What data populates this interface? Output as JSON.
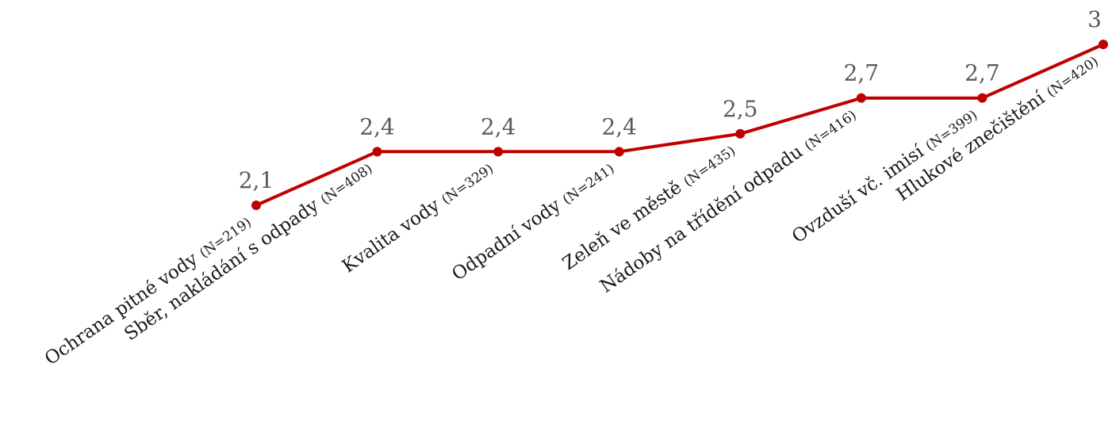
{
  "chart_data": {
    "type": "line",
    "title": "",
    "xlabel": "",
    "ylabel": "",
    "categories": [
      "Ochrana pitné vody",
      "Sběr, nakládání s odpady",
      "Kvalita vody",
      "Odpadní vody",
      "Zeleň ve městě",
      "Nádoby na třídění odpadu",
      "Ovzduší vč. imisí",
      "Hlukové znečištění"
    ],
    "category_n": [
      "(N=219)",
      "(N=408)",
      "(N=329)",
      "(N=241)",
      "(N=435)",
      "(N=416)",
      "(N=399)",
      "(N=420)"
    ],
    "series": [
      {
        "values": [
          2.1,
          2.4,
          2.4,
          2.4,
          2.5,
          2.7,
          2.7,
          3.0
        ],
        "data_labels": [
          "2,1",
          "2,4",
          "2,4",
          "2,4",
          "2,5",
          "2,7",
          "2,7",
          "3"
        ]
      }
    ],
    "ylim": [
      2.1,
      3.0
    ],
    "grid": false,
    "legend": "none",
    "line_color": "#C00000",
    "marker_color": "#C00000"
  }
}
